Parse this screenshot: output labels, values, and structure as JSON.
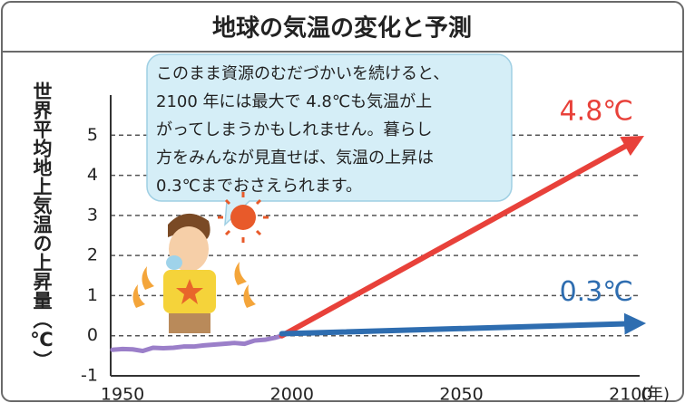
{
  "chart_data": {
    "type": "line",
    "title": "地球の気温の変化と予測",
    "ylabel": "世界平均地上気温の上昇量（℃）",
    "xlabel": "(年)",
    "annotation": [
      "このまま資源のむだづかいを続けると、",
      "2100 年には最大で 4.8℃も気温が上",
      "がってしまうかもしれません。暮らし",
      "方をみんなが見直せば、気温の上昇は",
      "0.3℃までおさえられます。"
    ],
    "xlim": [
      1946.5,
      2102.6
    ],
    "ylim": [
      -1,
      6
    ],
    "xticks": [
      1950,
      2000,
      2050,
      2100
    ],
    "yticks": [
      -1,
      0,
      1,
      2,
      3,
      4,
      5
    ],
    "grid": true,
    "series": [
      {
        "color": "#9b7fc9",
        "arrow": false,
        "x": [
          1947,
          1950,
          1953,
          1956,
          1959,
          1962,
          1965,
          1968,
          1971,
          1974,
          1977,
          1980,
          1983,
          1986,
          1989,
          1992,
          1995,
          1997
        ],
        "values": [
          -0.35,
          -0.33,
          -0.34,
          -0.38,
          -0.3,
          -0.31,
          -0.3,
          -0.27,
          -0.27,
          -0.24,
          -0.22,
          -0.2,
          -0.18,
          -0.2,
          -0.12,
          -0.1,
          -0.05,
          0.0
        ]
      },
      {
        "color": "#e8413a",
        "arrow": true,
        "x": [
          1997,
          2100
        ],
        "values": [
          0,
          4.8
        ],
        "value_labels": [
          null,
          "4.8℃"
        ]
      },
      {
        "color": "#2e6db0",
        "arrow": true,
        "x": [
          1997,
          2100
        ],
        "values": [
          0.05,
          0.3
        ],
        "value_labels": [
          null,
          "0.3℃"
        ]
      }
    ]
  }
}
